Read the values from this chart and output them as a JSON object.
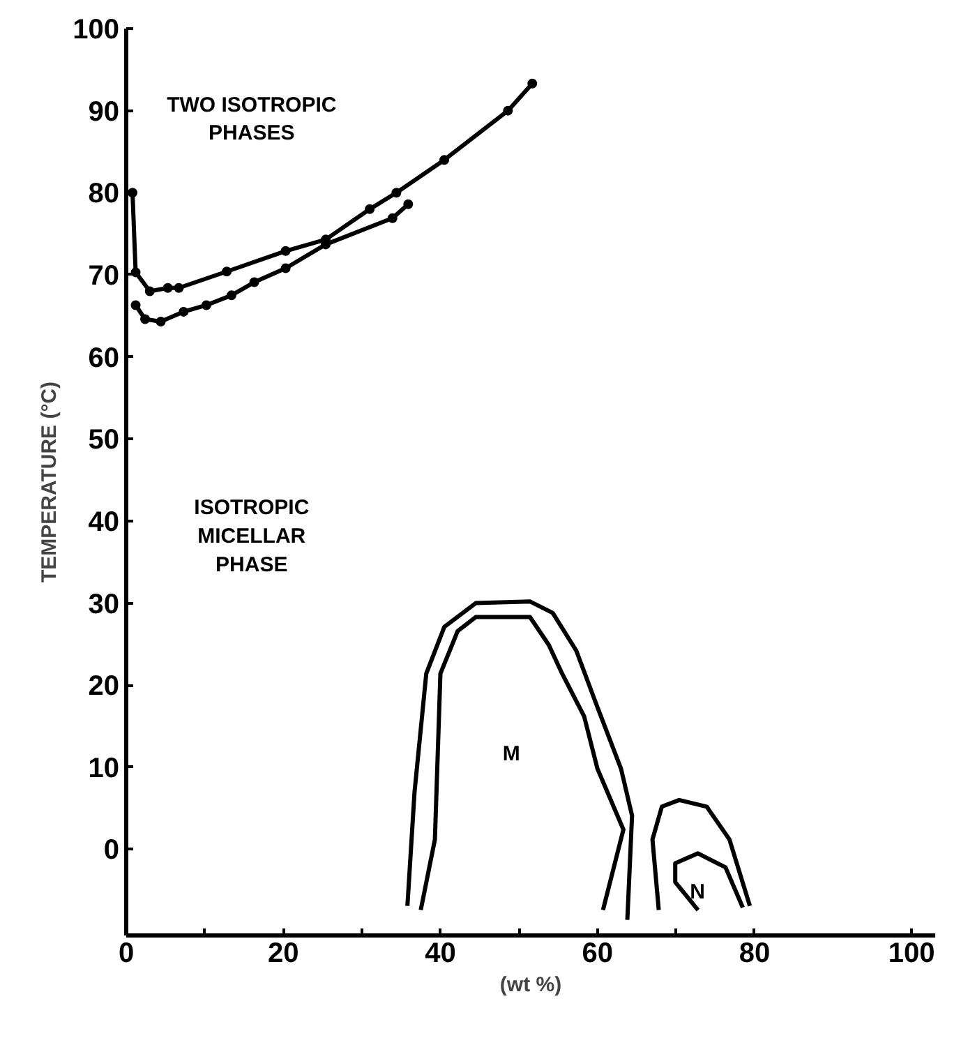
{
  "chart_data": {
    "type": "line",
    "xlabel": "(wt %)",
    "ylabel": "TEMPERATURE (°C)",
    "xlim": [
      0,
      103
    ],
    "ylim": [
      -10.5,
      100
    ],
    "xticks": [
      0,
      {
        "value": 10,
        "label": null
      },
      20,
      {
        "value": 30,
        "label": null
      },
      40,
      {
        "value": 50,
        "label": null
      },
      60,
      {
        "value": 70,
        "label": null
      },
      80,
      100
    ],
    "yticks": [
      0,
      10,
      20,
      30,
      40,
      50,
      60,
      70,
      80,
      90,
      100
    ],
    "grid": false,
    "series": [
      {
        "color": "#000000",
        "marker": "circle",
        "x": [
          0.8,
          1.2,
          3,
          5.3,
          6.7,
          12.8,
          20.3,
          25.4,
          31,
          34.4,
          40.5,
          48.6,
          51.7
        ],
        "values": [
          80,
          70.3,
          68,
          68.4,
          68.4,
          70.4,
          72.9,
          74.3,
          78,
          80,
          84,
          90,
          93.3
        ]
      },
      {
        "color": "#000000",
        "marker": "circle",
        "x": [
          1.2,
          2.4,
          4.4,
          7.3,
          10.2,
          13.4,
          16.3,
          20.3,
          25.4,
          33.9,
          35.9
        ],
        "values": [
          66.3,
          64.6,
          64.3,
          65.5,
          66.3,
          67.5,
          69.1,
          70.8,
          73.7,
          76.9,
          78.6
        ]
      },
      {
        "color": "#000000",
        "marker": "none",
        "x": [
          35.8,
          36.7,
          38.2,
          40.5,
          44.5,
          51.4,
          54.3,
          57.3,
          60.0,
          63.0,
          64.4,
          63.8
        ],
        "values": [
          -6.9,
          6.9,
          21.4,
          27.1,
          30.0,
          30.2,
          28.8,
          24.2,
          17.3,
          9.8,
          4.1,
          -8.6
        ]
      },
      {
        "color": "#000000",
        "marker": "none",
        "x": [
          37.5,
          39.3,
          40.0,
          42.2,
          44.5,
          51.4,
          53.8,
          55.5,
          58.3,
          60.0,
          63.3,
          60.7
        ],
        "values": [
          -7.4,
          1.2,
          21.4,
          26.6,
          28.3,
          28.3,
          24.9,
          21.4,
          16.2,
          9.8,
          2.4,
          -7.4
        ]
      },
      {
        "color": "#000000",
        "marker": "none",
        "x": [
          67.8,
          67.0,
          68.2,
          70.4,
          73.9,
          76.8,
          79.4
        ],
        "values": [
          -7.4,
          1.2,
          5.2,
          6.0,
          5.2,
          1.2,
          -6.9
        ]
      },
      {
        "color": "#000000",
        "marker": "none",
        "x": [
          78.5,
          76.3,
          72.8,
          69.9,
          69.9,
          72.8
        ],
        "values": [
          -7.1,
          -2.2,
          -0.5,
          -1.7,
          -4.0,
          -7.4
        ]
      }
    ],
    "annotations": [
      "TWO ISOTROPIC\nPHASES",
      "ISOTROPIC\nMICELLAR\nPHASE",
      "M",
      "N"
    ]
  }
}
